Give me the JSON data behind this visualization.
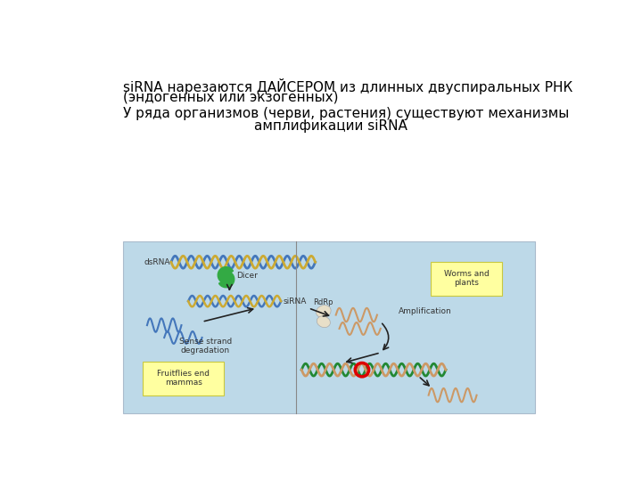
{
  "background_color": "#ffffff",
  "line1": "siRNA нарезаются ДАЙСЕРОМ из длинных двуспиральных РНК",
  "line2": "(эндогенных или экзогенных)",
  "line3": "У ряда организмов (черви, растения) существуют механизмы",
  "line4": "        амплификации siRNA",
  "font_size_main": 11,
  "font_size_diagram": 6.5,
  "diagram_bg": "#bdd9e8",
  "yellow_box": "#ffffa0",
  "yellow_edge": "#c8c840",
  "dna_blue1": "#4477bb",
  "dna_gold": "#ccaa33",
  "dna_green": "#228833",
  "dna_tan": "#cc9966",
  "dna_red": "#dd0000",
  "arrow_color": "#222222",
  "dicer_green": "#33aa44",
  "text_color": "#333333",
  "label_dsrna": "dsRNA",
  "label_dicer": "Dicer",
  "label_sirna": "siRNA",
  "label_rdrp": "RdRp",
  "label_sense": "Sense strand\ndegradation",
  "label_amplif": "Amplification",
  "label_worms": "Worms and\nplants",
  "label_fruit": "Fruitflies end\nmammas"
}
